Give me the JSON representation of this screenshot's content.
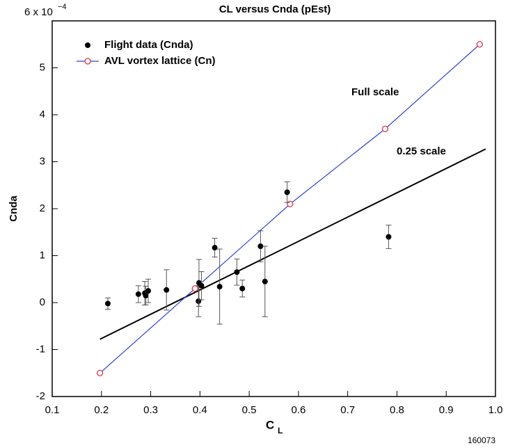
{
  "chart_data": {
    "type": "scatter",
    "title": "CL versus Cnda (pEst)",
    "xlabel": "C",
    "xlabel_subscript": "L",
    "ylabel": "Cnda",
    "y_tick_exponent": "−4",
    "footer": "160073",
    "xlim": [
      0.1,
      1.0
    ],
    "xticks": [
      0.1,
      0.2,
      0.3,
      0.4,
      0.5,
      0.6,
      0.7,
      0.8,
      0.9,
      {
        "value": 1.0,
        "label": "1.0"
      }
    ],
    "ylim": [
      -2,
      6
    ],
    "yticks": [
      -2,
      -1,
      0,
      1,
      2,
      3,
      4,
      5,
      {
        "value": 6,
        "label": "6 x 10"
      }
    ],
    "legend": "upper left",
    "series": [
      {
        "name": "Flight data (Cnda)",
        "color": "#000000",
        "x": [
          0.213,
          0.275,
          0.288,
          0.29,
          0.295,
          0.332,
          0.397,
          0.398,
          0.403,
          0.43,
          0.44,
          0.475,
          0.486,
          0.523,
          0.532,
          0.577,
          0.783
        ],
        "values": [
          -0.02,
          0.18,
          0.2,
          0.15,
          0.25,
          0.27,
          0.03,
          0.42,
          0.36,
          1.17,
          0.34,
          0.65,
          0.3,
          1.2,
          0.45,
          2.35,
          1.4
        ],
        "errors": [
          0.12,
          0.18,
          0.25,
          0.2,
          0.25,
          0.43,
          0.33,
          0.5,
          0.3,
          0.2,
          0.8,
          0.28,
          0.18,
          0.33,
          0.75,
          0.22,
          0.25
        ]
      },
      {
        "name": "AVL vortex lattice (Cn)",
        "color": "#3344cc",
        "marker_color": "#e0304a",
        "x": [
          0.197,
          0.39,
          0.583,
          0.776,
          0.968
        ],
        "values": [
          -1.5,
          0.3,
          2.1,
          3.7,
          5.5
        ]
      }
    ],
    "lines": [
      {
        "color": "#000000",
        "x": [
          0.197,
          0.98
        ],
        "values": [
          -0.78,
          3.27
        ]
      }
    ],
    "annotations": [
      "Full scale",
      "0.25 scale"
    ]
  }
}
